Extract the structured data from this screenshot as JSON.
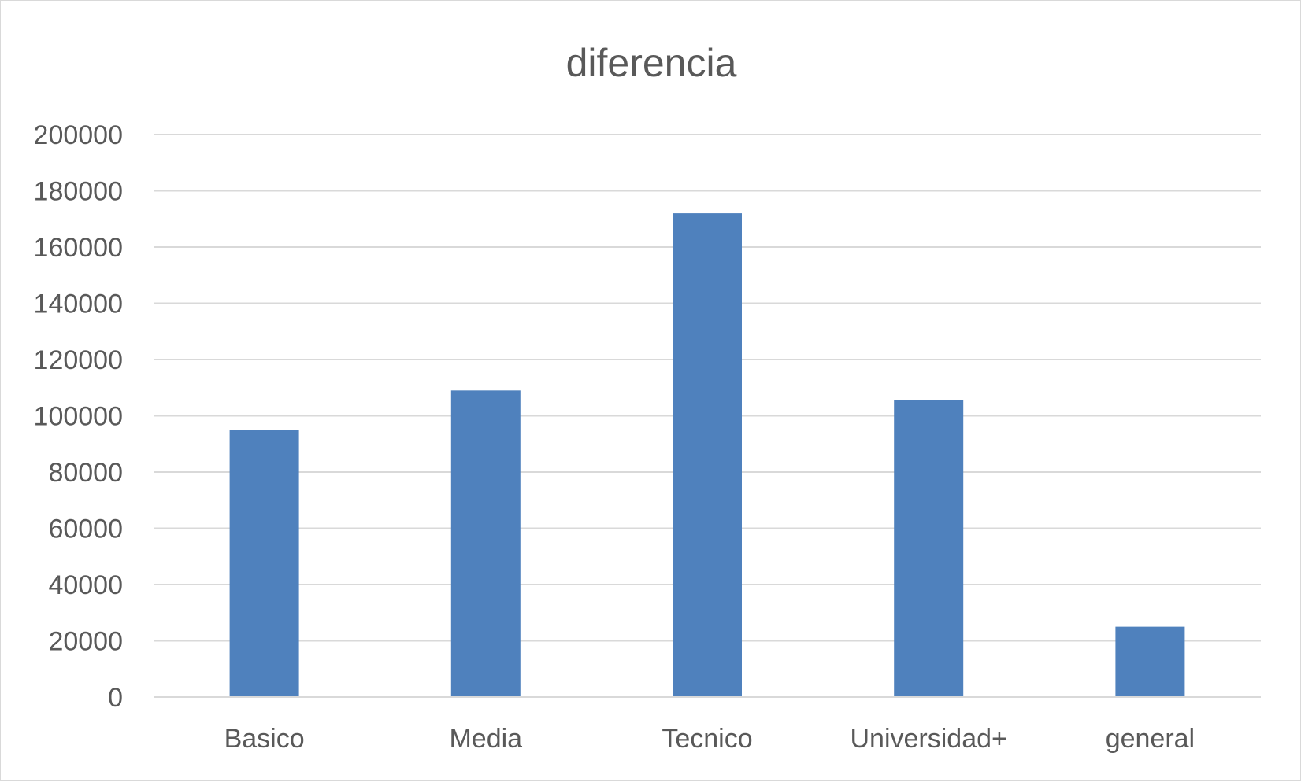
{
  "chart_data": {
    "type": "bar",
    "title": "diferencia",
    "categories": [
      "Basico",
      "Media",
      "Tecnico",
      "Universidad+",
      "general"
    ],
    "series": [
      {
        "values": [
          95000,
          109000,
          172000,
          105500,
          25000
        ],
        "color": "#4f81bd"
      }
    ],
    "ylim": [
      0,
      200000
    ],
    "yticks": [
      0,
      20000,
      40000,
      60000,
      80000,
      100000,
      120000,
      140000,
      160000,
      180000,
      200000
    ],
    "ytick_labels": [
      "0",
      "20000",
      "40000",
      "60000",
      "80000",
      "100000",
      "120000",
      "140000",
      "160000",
      "180000",
      "200000"
    ],
    "xlabel": "",
    "ylabel": "",
    "grid": true,
    "legend": "none"
  }
}
